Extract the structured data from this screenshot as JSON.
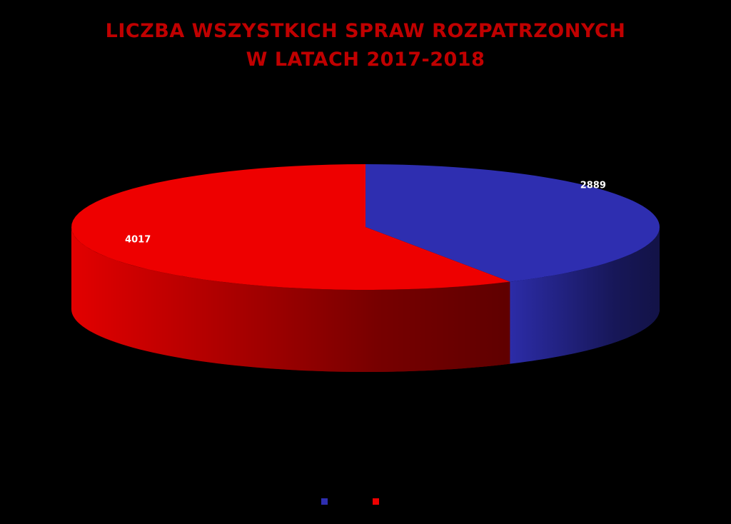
{
  "chart_data": {
    "type": "pie",
    "title": [
      "LICZBA WSZYSTKICH SPRAW ROZPATRZONYCH",
      "W LATACH 2017-2018"
    ],
    "categories": [
      null,
      null
    ],
    "values": [
      2889,
      4017
    ],
    "colors": [
      "#2e2eb0",
      "#ee0000"
    ]
  }
}
